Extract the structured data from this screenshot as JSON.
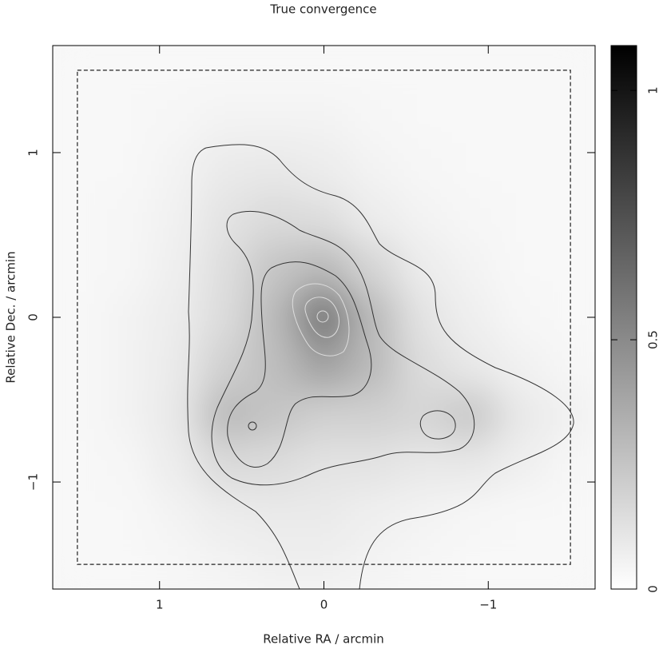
{
  "chart_data": {
    "type": "heatmap",
    "title": "True convergence",
    "x_label": "Relative RA / arcmin",
    "y_label": "Relative Dec. / arcmin",
    "x": [
      1.5,
      1.2,
      0.9,
      0.6,
      0.3,
      0,
      -0.3,
      -0.6,
      -0.9,
      -1.2,
      -1.5
    ],
    "y": [
      1.5,
      1.2,
      0.9,
      0.6,
      0.3,
      0,
      -0.3,
      -0.6,
      -0.9,
      -1.2,
      -1.5
    ],
    "z": [
      [
        0.03,
        0.03,
        0.03,
        0.03,
        0.03,
        0.03,
        0.03,
        0.03,
        0.03,
        0.03,
        0.03
      ],
      [
        0.03,
        0.03,
        0.04,
        0.05,
        0.05,
        0.05,
        0.04,
        0.03,
        0.03,
        0.03,
        0.03
      ],
      [
        0.03,
        0.03,
        0.05,
        0.09,
        0.1,
        0.08,
        0.05,
        0.04,
        0.03,
        0.03,
        0.03
      ],
      [
        0.03,
        0.04,
        0.06,
        0.12,
        0.16,
        0.14,
        0.08,
        0.05,
        0.04,
        0.03,
        0.03
      ],
      [
        0.03,
        0.04,
        0.07,
        0.14,
        0.25,
        0.3,
        0.18,
        0.08,
        0.05,
        0.03,
        0.03
      ],
      [
        0.03,
        0.05,
        0.08,
        0.15,
        0.3,
        0.6,
        0.3,
        0.12,
        0.07,
        0.04,
        0.03
      ],
      [
        0.03,
        0.05,
        0.09,
        0.2,
        0.28,
        0.4,
        0.3,
        0.15,
        0.1,
        0.06,
        0.04
      ],
      [
        0.03,
        0.05,
        0.1,
        0.3,
        0.25,
        0.2,
        0.2,
        0.18,
        0.24,
        0.1,
        0.06
      ],
      [
        0.03,
        0.04,
        0.08,
        0.16,
        0.15,
        0.12,
        0.12,
        0.1,
        0.1,
        0.07,
        0.04
      ],
      [
        0.03,
        0.03,
        0.05,
        0.08,
        0.09,
        0.09,
        0.07,
        0.05,
        0.04,
        0.03,
        0.03
      ],
      [
        0.03,
        0.03,
        0.04,
        0.05,
        0.07,
        0.07,
        0.05,
        0.04,
        0.03,
        0.03,
        0.03
      ]
    ],
    "xlim": [
      1.65,
      -1.65
    ],
    "ylim": [
      -1.65,
      1.65
    ],
    "xticks": [
      1,
      0,
      {
        "value": -1,
        "label": "−1"
      }
    ],
    "yticks": [
      {
        "value": -1,
        "label": "−1"
      },
      0,
      1
    ],
    "colorbar": {
      "lim": [
        0,
        1.09
      ],
      "ticks": [
        0,
        0.5,
        1
      ],
      "colors": [
        "#ffffff",
        "#000000"
      ]
    },
    "field_lim": [
      -1.5,
      1.5
    ]
  }
}
